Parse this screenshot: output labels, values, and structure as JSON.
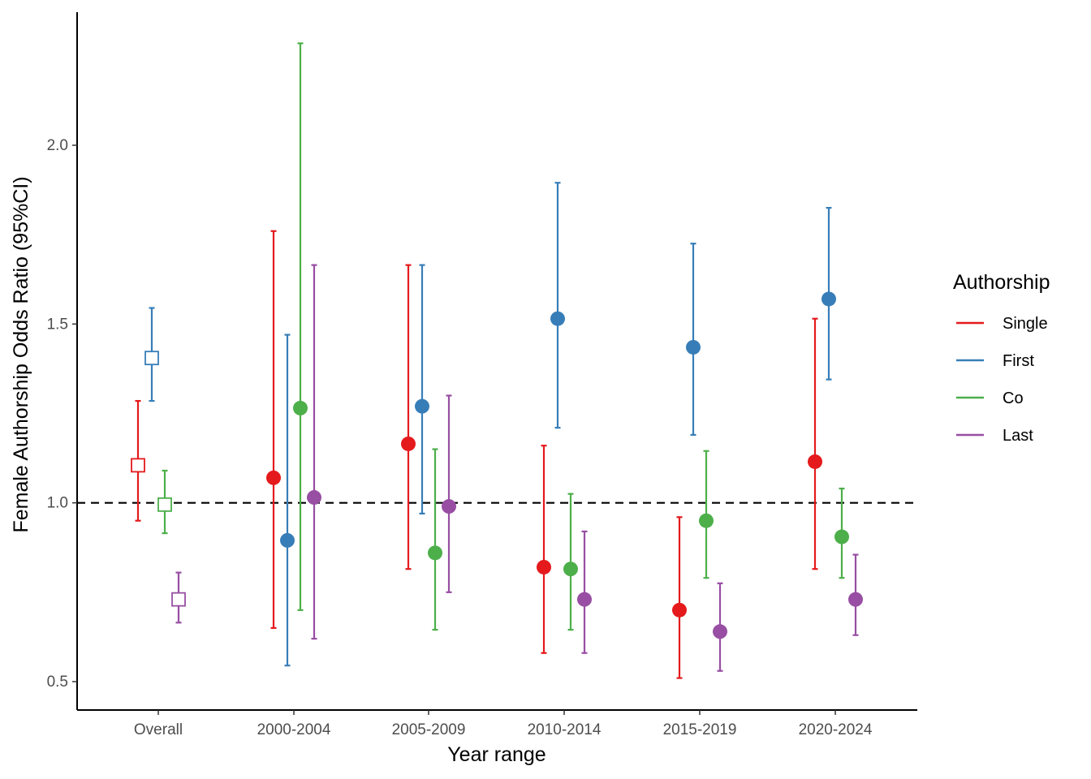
{
  "chart_data": {
    "type": "scatter",
    "subtype": "point-errorbar",
    "title": "",
    "xlabel": "Year range",
    "ylabel": "Female Authorship Odds Ratio (95%CI)",
    "categories": [
      "Overall",
      "2000-2004",
      "2005-2009",
      "2010-2014",
      "2015-2019",
      "2020-2024"
    ],
    "ylim": [
      0.43,
      2.37
    ],
    "yticks": [
      0.5,
      1.0,
      1.5,
      2.0
    ],
    "ytick_labels": [
      "0.5",
      "1.0",
      "1.5",
      "2.0"
    ],
    "reference_line": {
      "y": 1.0,
      "style": "dashed"
    },
    "grid": false,
    "legend": {
      "title": "Authorship",
      "position": "right"
    },
    "marker_note": "Overall estimates drawn as open squares; year-range estimates as filled circles",
    "series": [
      {
        "name": "Single",
        "color": "#E41A1C",
        "estimate": [
          1.105,
          1.07,
          1.165,
          0.82,
          0.7,
          1.115
        ],
        "lower": [
          0.95,
          0.65,
          0.815,
          0.58,
          0.51,
          0.815
        ],
        "upper": [
          1.285,
          1.76,
          1.665,
          1.16,
          0.96,
          1.515
        ]
      },
      {
        "name": "First",
        "color": "#377EB8",
        "estimate": [
          1.405,
          0.895,
          1.27,
          1.515,
          1.435,
          1.57
        ],
        "lower": [
          1.285,
          0.545,
          0.97,
          1.21,
          1.19,
          1.345
        ],
        "upper": [
          1.545,
          1.47,
          1.665,
          1.895,
          1.725,
          1.825
        ]
      },
      {
        "name": "Co",
        "color": "#4DAF4A",
        "estimate": [
          0.995,
          1.265,
          0.86,
          0.815,
          0.95,
          0.905
        ],
        "lower": [
          0.915,
          0.7,
          0.645,
          0.645,
          0.79,
          0.79
        ],
        "upper": [
          1.09,
          2.285,
          1.15,
          1.025,
          1.145,
          1.04
        ]
      },
      {
        "name": "Last",
        "color": "#984EA3",
        "estimate": [
          0.73,
          1.015,
          0.99,
          0.73,
          0.64,
          0.73
        ],
        "lower": [
          0.665,
          0.62,
          0.75,
          0.58,
          0.53,
          0.63
        ],
        "upper": [
          0.805,
          1.665,
          1.3,
          0.92,
          0.775,
          0.855
        ]
      }
    ]
  }
}
